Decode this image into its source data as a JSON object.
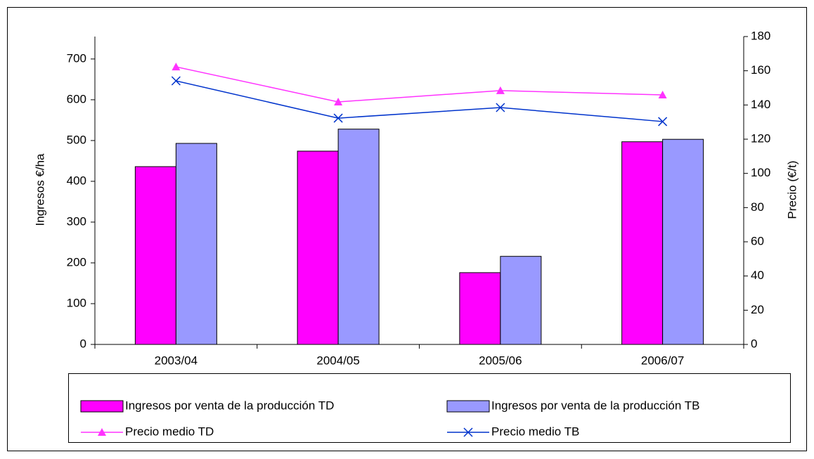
{
  "chart_data": {
    "type": "bar",
    "categories": [
      "2003/04",
      "2004/05",
      "2005/06",
      "2006/07"
    ],
    "series": [
      {
        "name": "Ingresos por venta de la producción TD",
        "type": "bar",
        "color": "#ff00ff",
        "values": [
          436,
          474,
          176,
          497
        ]
      },
      {
        "name": "Ingresos por venta de la producción TB",
        "type": "bar",
        "color": "#9999ff",
        "values": [
          493,
          528,
          216,
          503
        ]
      },
      {
        "name": "Precio medio TD",
        "type": "line",
        "axis": "y2",
        "marker": "triangle",
        "color": "#ff33ff",
        "values": [
          162.3,
          141.8,
          148.4,
          145.9
        ]
      },
      {
        "name": "Precio medio TB",
        "type": "line",
        "axis": "y2",
        "marker": "x",
        "color": "#0033cc",
        "values": [
          154.1,
          132.3,
          138.5,
          130.3
        ]
      }
    ],
    "ylabel": "Ingresos €/ha",
    "y2label": "Precio (€/t)",
    "ylim": [
      0,
      755
    ],
    "yticks": [
      0,
      100,
      200,
      300,
      400,
      500,
      600,
      700
    ],
    "y2lim": [
      0,
      180
    ],
    "y2ticks": [
      0,
      20,
      40,
      60,
      80,
      100,
      120,
      140,
      160,
      180
    ],
    "grid": false,
    "legend": "bottom"
  }
}
